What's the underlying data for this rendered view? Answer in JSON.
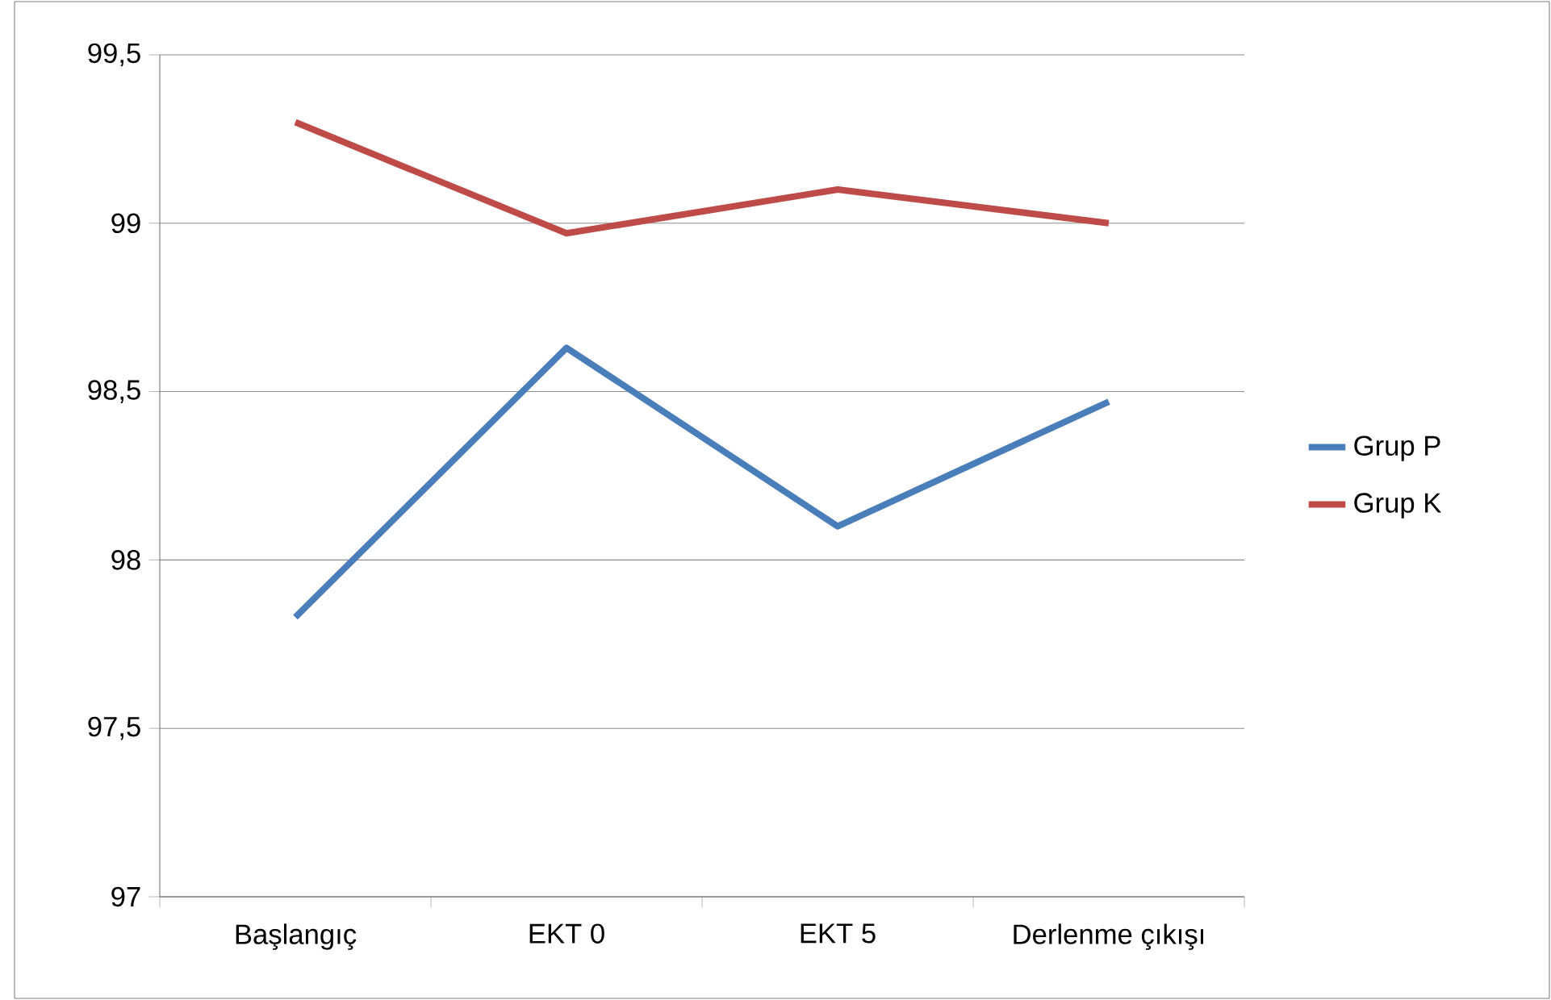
{
  "chart_data": {
    "type": "line",
    "categories": [
      "Başlangıç",
      "EKT 0",
      "EKT 5",
      "Derlenme çıkışı"
    ],
    "series": [
      {
        "name": "Grup P",
        "color": "#4a7ebb",
        "values": [
          97.83,
          98.63,
          98.1,
          98.47
        ]
      },
      {
        "name": "Grup K",
        "color": "#be4b48",
        "values": [
          99.3,
          98.97,
          99.1,
          99.0
        ]
      }
    ],
    "ylim": [
      97,
      99.5
    ],
    "yticks": [
      {
        "value": 97,
        "label": "97"
      },
      {
        "value": 97.5,
        "label": "97,5"
      },
      {
        "value": 98,
        "label": "98"
      },
      {
        "value": 98.5,
        "label": "98,5"
      },
      {
        "value": 99,
        "label": "99"
      },
      {
        "value": 99.5,
        "label": "99,5"
      }
    ],
    "grid": "y",
    "legend": "right",
    "marker": "none",
    "line_style": "solid"
  }
}
